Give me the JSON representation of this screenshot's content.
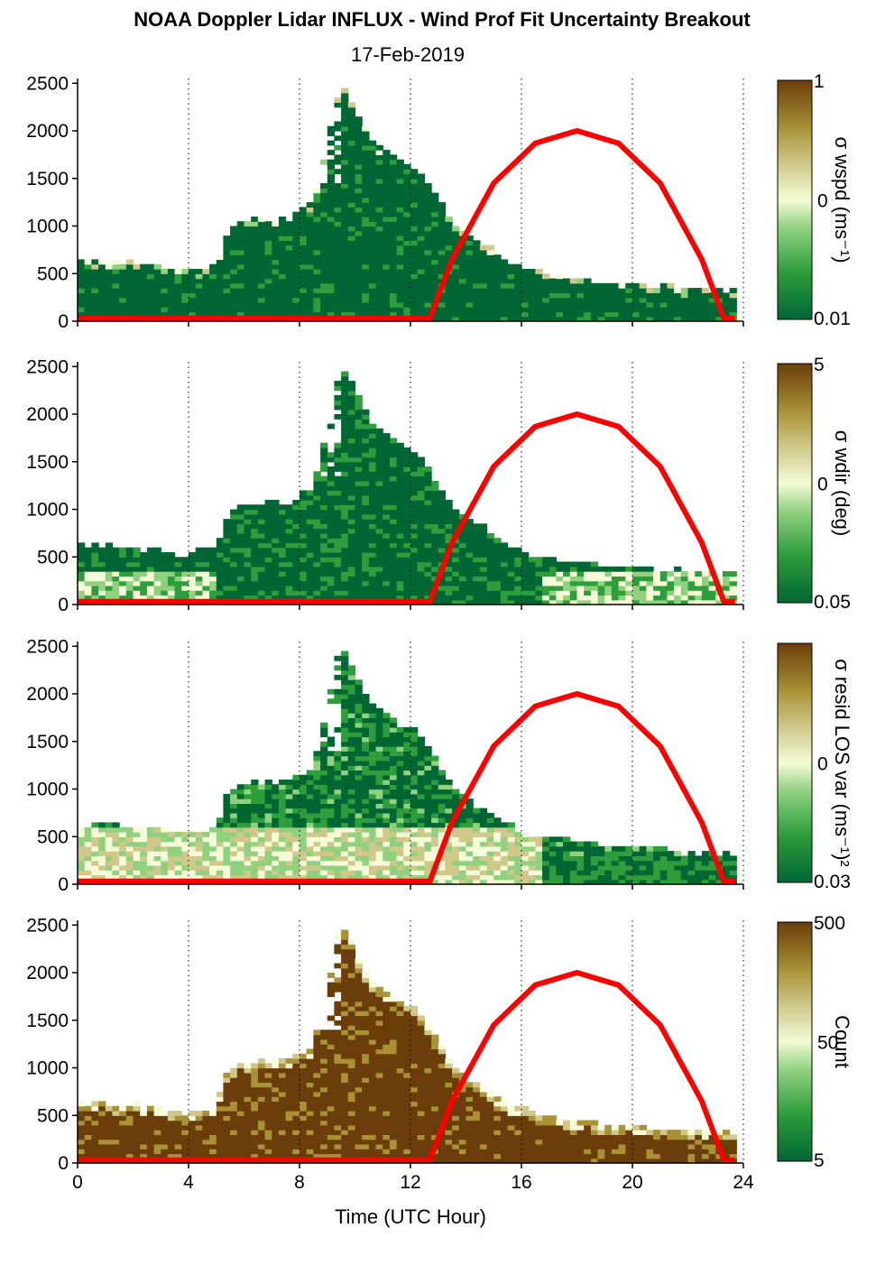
{
  "title": "NOAA Doppler Lidar INFLUX - Wind Prof Fit Uncertainty Breakout",
  "subtitle": "17-Feb-2019",
  "xlabel": "Time (UTC Hour)",
  "x_ticks": [
    "0",
    "4",
    "8",
    "12",
    "16",
    "20",
    "24"
  ],
  "y_ticks": [
    "0",
    "500",
    "1000",
    "1500",
    "2000",
    "2500"
  ],
  "colors": {
    "curve": "#ff0000",
    "colormap": [
      "#006633",
      "#2e9e3c",
      "#8fd17f",
      "#f4fbd6",
      "#cfc88a",
      "#a99236",
      "#6b3d0a"
    ]
  },
  "chart_data": [
    {
      "type": "heatmap",
      "panel": "wspd",
      "colorbar_label": "σ wspd (ms⁻¹)",
      "colorbar_ticks": [
        "1",
        "0",
        "0.01"
      ],
      "xlim": [
        0,
        24
      ],
      "ylim": [
        0,
        2550
      ],
      "grid": "vertical dotted lines at 4-hour intervals",
      "profile_top_m": [
        [
          0,
          620
        ],
        [
          1,
          600
        ],
        [
          2,
          580
        ],
        [
          3,
          560
        ],
        [
          4,
          500
        ],
        [
          5,
          580
        ],
        [
          5.5,
          1000
        ],
        [
          6.5,
          1050
        ],
        [
          7.5,
          1050
        ],
        [
          8.5,
          1200
        ],
        [
          9.5,
          2500
        ],
        [
          10.5,
          1900
        ],
        [
          11.5,
          1700
        ],
        [
          12.5,
          1500
        ],
        [
          13.5,
          1000
        ],
        [
          14.5,
          800
        ],
        [
          15.5,
          600
        ],
        [
          16.5,
          500
        ],
        [
          17.5,
          450
        ],
        [
          18.5,
          400
        ],
        [
          19.5,
          380
        ],
        [
          20.5,
          350
        ],
        [
          21.5,
          330
        ],
        [
          22.5,
          320
        ],
        [
          23.7,
          300
        ]
      ],
      "curve": {
        "name": "red overlay",
        "x": [
          0,
          12.7,
          13.5,
          15,
          16.5,
          18,
          19.5,
          21,
          22.5,
          23.3,
          23.7
        ],
        "y": [
          30,
          30,
          650,
          1450,
          1870,
          2000,
          1870,
          1450,
          650,
          30,
          30
        ]
      }
    },
    {
      "type": "heatmap",
      "panel": "wdir",
      "colorbar_label": "σ wdir (deg)",
      "colorbar_ticks": [
        "5",
        "0",
        "0.05"
      ],
      "xlim": [
        0,
        24
      ],
      "ylim": [
        0,
        2550
      ],
      "grid": "vertical dotted lines at 4-hour intervals",
      "profile_top_m": [
        [
          0,
          620
        ],
        [
          1,
          600
        ],
        [
          2,
          580
        ],
        [
          3,
          560
        ],
        [
          4,
          500
        ],
        [
          5,
          580
        ],
        [
          5.5,
          1000
        ],
        [
          6.5,
          1050
        ],
        [
          7.5,
          1050
        ],
        [
          8.5,
          1200
        ],
        [
          9.5,
          2500
        ],
        [
          10.5,
          1900
        ],
        [
          11.5,
          1700
        ],
        [
          12.5,
          1500
        ],
        [
          13.5,
          1000
        ],
        [
          14.5,
          800
        ],
        [
          15.5,
          600
        ],
        [
          16.5,
          500
        ],
        [
          17.5,
          450
        ],
        [
          18.5,
          400
        ],
        [
          19.5,
          380
        ],
        [
          20.5,
          350
        ],
        [
          21.5,
          330
        ],
        [
          22.5,
          320
        ],
        [
          23.7,
          300
        ]
      ],
      "curve": {
        "name": "red overlay",
        "x": [
          0,
          12.7,
          13.5,
          15,
          16.5,
          18,
          19.5,
          21,
          22.5,
          23.3,
          23.7
        ],
        "y": [
          30,
          30,
          650,
          1450,
          1870,
          2000,
          1870,
          1450,
          650,
          30,
          30
        ]
      }
    },
    {
      "type": "heatmap",
      "panel": "resid",
      "colorbar_label": "σ resid LOS var (ms⁻¹)²",
      "colorbar_ticks": [
        "",
        "0",
        "0.03"
      ],
      "xlim": [
        0,
        24
      ],
      "ylim": [
        0,
        2550
      ],
      "grid": "vertical dotted lines at 4-hour intervals",
      "profile_top_m": [
        [
          0,
          620
        ],
        [
          1,
          600
        ],
        [
          2,
          580
        ],
        [
          3,
          560
        ],
        [
          4,
          500
        ],
        [
          5,
          580
        ],
        [
          5.5,
          1000
        ],
        [
          6.5,
          1050
        ],
        [
          7.5,
          1050
        ],
        [
          8.5,
          1200
        ],
        [
          9.5,
          2500
        ],
        [
          10.5,
          1900
        ],
        [
          11.5,
          1700
        ],
        [
          12.5,
          1500
        ],
        [
          13.5,
          1000
        ],
        [
          14.5,
          800
        ],
        [
          15.5,
          600
        ],
        [
          16.5,
          500
        ],
        [
          17.5,
          450
        ],
        [
          18.5,
          400
        ],
        [
          19.5,
          380
        ],
        [
          20.5,
          350
        ],
        [
          21.5,
          330
        ],
        [
          22.5,
          320
        ],
        [
          23.7,
          300
        ]
      ],
      "curve": {
        "name": "red overlay",
        "x": [
          0,
          12.7,
          13.5,
          15,
          16.5,
          18,
          19.5,
          21,
          22.5,
          23.3,
          23.7
        ],
        "y": [
          30,
          30,
          650,
          1450,
          1870,
          2000,
          1870,
          1450,
          650,
          30,
          30
        ]
      }
    },
    {
      "type": "heatmap",
      "panel": "count",
      "colorbar_label": "Count",
      "colorbar_ticks": [
        "500",
        "50",
        "5"
      ],
      "xlim": [
        0,
        24
      ],
      "ylim": [
        0,
        2550
      ],
      "grid": "vertical dotted lines at 4-hour intervals",
      "profile_top_m": [
        [
          0,
          620
        ],
        [
          1,
          600
        ],
        [
          2,
          580
        ],
        [
          3,
          560
        ],
        [
          4,
          500
        ],
        [
          5,
          580
        ],
        [
          5.5,
          1000
        ],
        [
          6.5,
          1050
        ],
        [
          7.5,
          1050
        ],
        [
          8.5,
          1200
        ],
        [
          9.5,
          2500
        ],
        [
          10.5,
          1900
        ],
        [
          11.5,
          1700
        ],
        [
          12.5,
          1500
        ],
        [
          13.5,
          1000
        ],
        [
          14.5,
          800
        ],
        [
          15.5,
          600
        ],
        [
          16.5,
          500
        ],
        [
          17.5,
          450
        ],
        [
          18.5,
          400
        ],
        [
          19.5,
          380
        ],
        [
          20.5,
          350
        ],
        [
          21.5,
          330
        ],
        [
          22.5,
          320
        ],
        [
          23.7,
          300
        ]
      ],
      "curve": {
        "name": "red overlay",
        "x": [
          0,
          12.7,
          13.5,
          15,
          16.5,
          18,
          19.5,
          21,
          22.5,
          23.3,
          23.7
        ],
        "y": [
          30,
          30,
          650,
          1450,
          1870,
          2000,
          1870,
          1450,
          650,
          30,
          30
        ]
      }
    }
  ]
}
